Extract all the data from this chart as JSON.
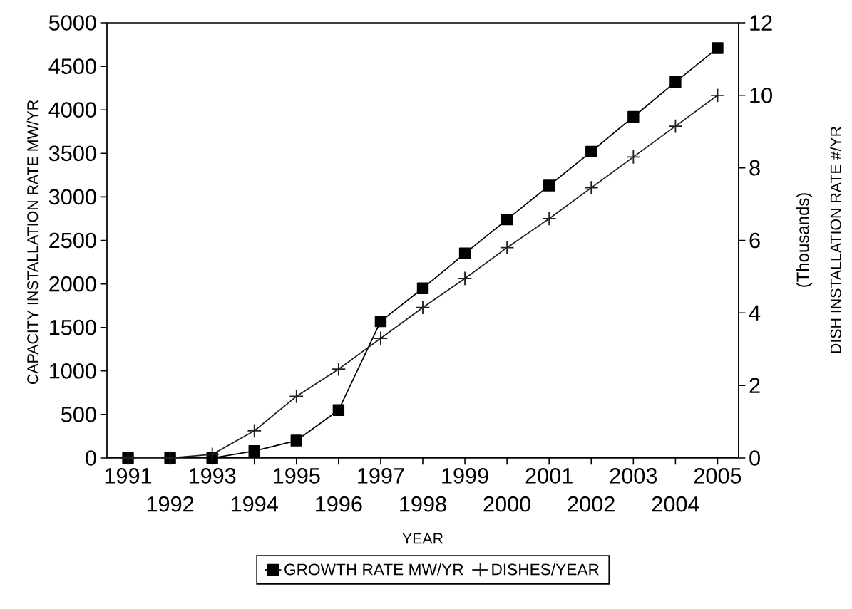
{
  "chart_data": {
    "type": "line",
    "xlabel": "YEAR",
    "ylabel": "CAPACITY INSTALLATION RATE MW/YR",
    "y2label": "DISH INSTALLATION RATE #/YR",
    "annotations": [
      "(Thousands)"
    ],
    "categories": [
      "1991",
      "1992",
      "1993",
      "1994",
      "1995",
      "1996",
      "1997",
      "1998",
      "1999",
      "2000",
      "2001",
      "2002",
      "2003",
      "2004",
      "2005"
    ],
    "series": [
      {
        "name": "GROWTH RATE MW/YR",
        "color": "#000000",
        "marker": "square",
        "values": [
          0,
          0,
          0,
          80,
          200,
          550,
          1570,
          1950,
          2350,
          2740,
          3130,
          3520,
          3920,
          4320,
          4710
        ]
      },
      {
        "name": "DISHES/YEAR",
        "color": "#202020",
        "marker": "cross",
        "axis": "y2",
        "values": [
          0,
          0,
          0.1,
          0.75,
          1.7,
          2.45,
          3.3,
          4.15,
          4.95,
          5.8,
          6.6,
          7.45,
          8.3,
          9.15,
          10.0
        ]
      }
    ],
    "ylim": [
      0,
      5000
    ],
    "yticks": [
      0,
      500,
      1000,
      1500,
      2000,
      2500,
      3000,
      3500,
      4000,
      4500,
      5000
    ],
    "y2lim": [
      0,
      12
    ],
    "y2ticks": [
      0,
      2,
      4,
      6,
      8,
      10,
      12
    ],
    "legend": "bottom",
    "line_style": "solid"
  }
}
